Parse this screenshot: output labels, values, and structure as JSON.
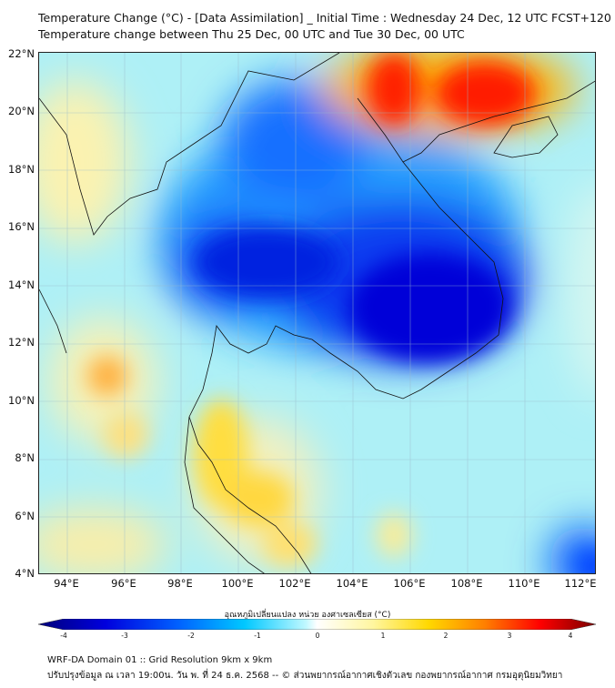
{
  "title": {
    "line1": "Temperature Change (°C) - [Data Assimilation] _ Initial Time : Wednesday 24 Dec, 12 UTC FCST+120",
    "line2": "Temperature change between Thu 25 Dec, 00 UTC and Tue 30 Dec, 00 UTC"
  },
  "map": {
    "lat_labels": [
      "22°N",
      "20°N",
      "18°N",
      "16°N",
      "14°N",
      "12°N",
      "10°N",
      "8°N",
      "6°N",
      "4°N"
    ],
    "lon_labels": [
      "94°E",
      "96°E",
      "98°E",
      "100°E",
      "102°E",
      "104°E",
      "106°E",
      "108°E",
      "110°E",
      "112°E"
    ]
  },
  "colorbar": {
    "label": "อุณหภูมิเปลี่ยนแปลง หน่วย องศาเซลเซียส (°C)",
    "ticks": [
      "-4",
      "-3",
      "-2",
      "-1",
      "0",
      "1",
      "2",
      "3",
      "4"
    ],
    "range": [
      -4,
      4
    ],
    "colors": [
      "#00007a",
      "#0000dd",
      "#0060ff",
      "#00c0ff",
      "#c0f8ff",
      "#ffffff",
      "#fff6a0",
      "#ffd800",
      "#ff8000",
      "#ff0000",
      "#7a0000"
    ]
  },
  "footer": {
    "line1": "WRF-DA Domain 01 :: Grid Resolution 9km x 9km",
    "line2": "ปรับปรุงข้อมูล ณ เวลา 19:00น. วัน พ. ที่ 24 ธ.ค. 2568 -- © ส่วนพยากรณ์อากาศเชิงตัวเลข กองพยากรณ์อากาศ กรมอุตุนิยมวิทยา"
  }
}
